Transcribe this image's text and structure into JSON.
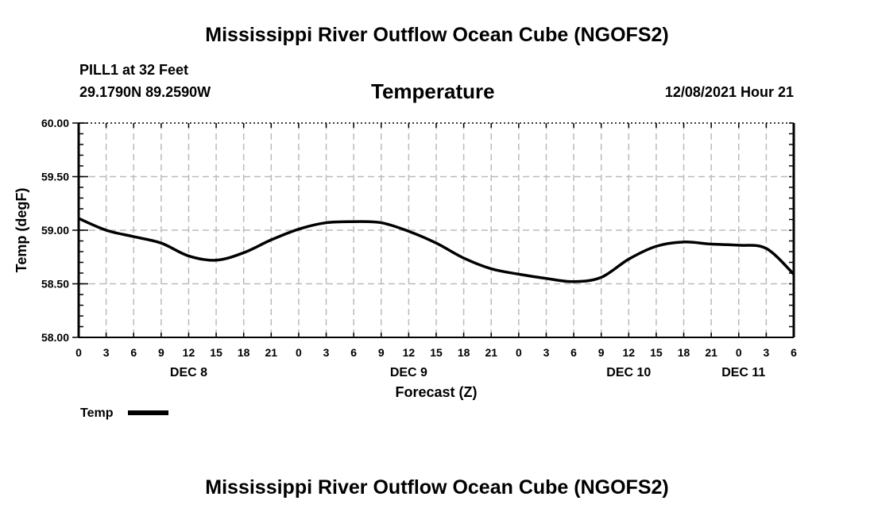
{
  "header": {
    "title": "Mississippi River Outflow Ocean Cube (NGOFS2)",
    "station": "PILL1 at 32 Feet",
    "coords": "29.1790N  89.2590W",
    "chart_title": "Temperature",
    "datetime": "12/08/2021 Hour 21"
  },
  "footer": {
    "title": "Mississippi River Outflow Ocean Cube (NGOFS2)"
  },
  "chart_data": {
    "type": "line",
    "title": "Temperature",
    "xlabel": "Forecast (Z)",
    "ylabel": "Temp (degF)",
    "ylim": [
      58.0,
      60.0
    ],
    "yticks": [
      "58.00",
      "58.50",
      "59.00",
      "59.50",
      "60.00"
    ],
    "xlim_hours": [
      0,
      78
    ],
    "xtick_labels": [
      "0",
      "3",
      "6",
      "9",
      "12",
      "15",
      "18",
      "21",
      "0",
      "3",
      "6",
      "9",
      "12",
      "15",
      "18",
      "21",
      "0",
      "3",
      "6",
      "9",
      "12",
      "15",
      "18",
      "21",
      "0",
      "3",
      "6"
    ],
    "day_labels": [
      {
        "label": "DEC 8",
        "hour": 12
      },
      {
        "label": "DEC 9",
        "hour": 36
      },
      {
        "label": "DEC 10",
        "hour": 60
      },
      {
        "label": "DEC 11",
        "hour": 72
      }
    ],
    "grid": true,
    "legend": {
      "label": "Temp",
      "placement": "bottom-left"
    },
    "series": [
      {
        "name": "Temp",
        "color": "#000000",
        "x_hours": [
          0,
          3,
          6,
          9,
          12,
          15,
          18,
          21,
          24,
          27,
          30,
          33,
          36,
          39,
          42,
          45,
          48,
          51,
          54,
          57,
          60,
          63,
          66,
          69,
          72,
          75,
          78
        ],
        "values": [
          59.11,
          59.0,
          58.94,
          58.88,
          58.76,
          58.72,
          58.79,
          58.91,
          59.01,
          59.07,
          59.08,
          59.07,
          58.99,
          58.88,
          58.74,
          58.64,
          58.59,
          58.55,
          58.52,
          58.56,
          58.73,
          58.85,
          58.89,
          58.87,
          58.86,
          58.83,
          58.59
        ]
      }
    ]
  }
}
